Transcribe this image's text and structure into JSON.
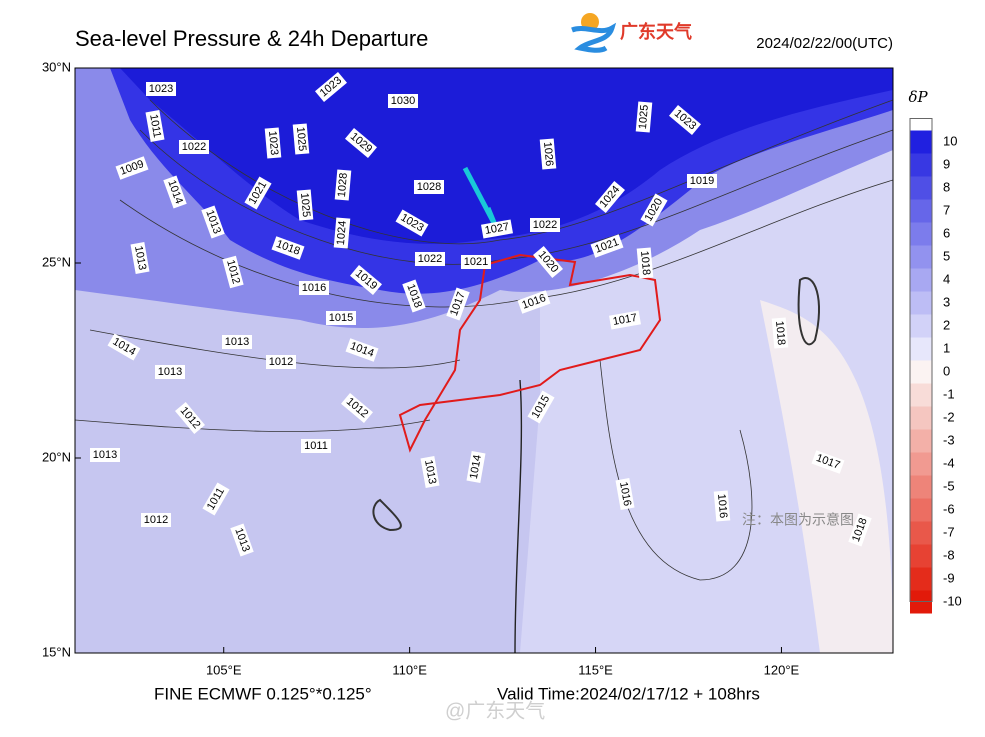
{
  "map": {
    "title": "Sea-level Pressure & 24h Departure",
    "brand": "广东天气",
    "datetime": "2024/02/22/00(UTC)",
    "xlim": [
      101,
      123
    ],
    "ylim": [
      15,
      30
    ],
    "xticks": [
      {
        "value": 105,
        "label": "105°E"
      },
      {
        "value": 110,
        "label": "110°E"
      },
      {
        "value": 115,
        "label": "115°E"
      },
      {
        "value": 120,
        "label": "120°E"
      }
    ],
    "yticks": [
      {
        "value": 15,
        "label": "15°N"
      },
      {
        "value": 20,
        "label": "20°N"
      },
      {
        "value": 25,
        "label": "25°N"
      },
      {
        "value": 30,
        "label": "30°N"
      }
    ],
    "colorbar": {
      "label": "δP",
      "levels": [
        {
          "value": 10,
          "color": "#2020e0"
        },
        {
          "value": 9,
          "color": "#3838e3"
        },
        {
          "value": 8,
          "color": "#4f4fe6"
        },
        {
          "value": 7,
          "color": "#6666e9"
        },
        {
          "value": 6,
          "color": "#7c7cec"
        },
        {
          "value": 5,
          "color": "#9292ef"
        },
        {
          "value": 4,
          "color": "#a8a8f2"
        },
        {
          "value": 3,
          "color": "#bdbdf5"
        },
        {
          "value": 2,
          "color": "#d2d2f8"
        },
        {
          "value": 1,
          "color": "#e7e7fb"
        },
        {
          "value": 0,
          "color": "#fbf3f2"
        },
        {
          "value": -1,
          "color": "#f8dcd8"
        },
        {
          "value": -2,
          "color": "#f5c6c0"
        },
        {
          "value": -3,
          "color": "#f3b0a8"
        },
        {
          "value": -4,
          "color": "#f19a91"
        },
        {
          "value": -5,
          "color": "#ee8479"
        },
        {
          "value": -6,
          "color": "#ec6e62"
        },
        {
          "value": -7,
          "color": "#e9584a"
        },
        {
          "value": -8,
          "color": "#e74233"
        },
        {
          "value": -9,
          "color": "#e42c1b"
        },
        {
          "value": -10,
          "color": "#e21a0a"
        }
      ]
    },
    "isobar_labels": [
      1023,
      1011,
      1022,
      1009,
      1014,
      1013,
      1013,
      1012,
      1023,
      1025,
      1021,
      1025,
      1028,
      1024,
      1018,
      1016,
      1019,
      1015,
      1014,
      1023,
      1030,
      1029,
      1028,
      1023,
      1022,
      1018,
      1017,
      1021,
      1027,
      1022,
      1026,
      1025,
      1023,
      1024,
      1019,
      1020,
      1021,
      1018,
      1020,
      1016,
      1017,
      1013,
      1014,
      1012,
      1013,
      1012,
      1012,
      1011,
      1013,
      1011,
      1012,
      1013,
      1015,
      1013,
      1014,
      1016,
      1016,
      1018,
      1017,
      1018
    ],
    "note": "注：本图为示意图",
    "model": "FINE ECMWF 0.125°*0.125°",
    "valid_time": "Valid Time:2024/02/17/12 + 108hrs",
    "watermark": "@广东天气"
  }
}
